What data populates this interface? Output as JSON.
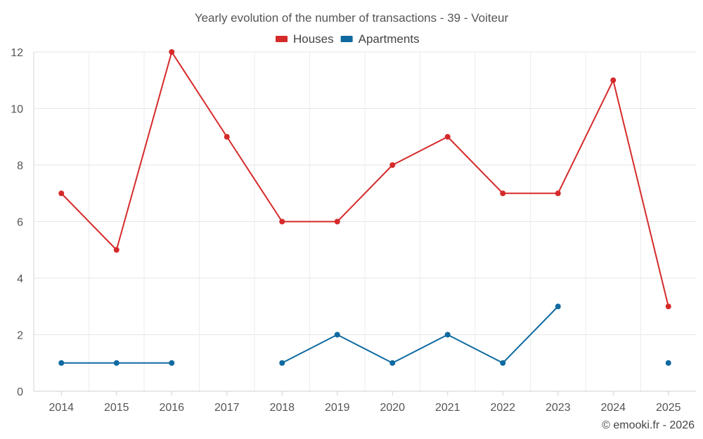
{
  "chart_data": {
    "type": "line",
    "title": "Yearly evolution of the number of transactions - 39 - Voiteur",
    "categories": [
      "2014",
      "2015",
      "2016",
      "2017",
      "2018",
      "2019",
      "2020",
      "2021",
      "2022",
      "2023",
      "2024",
      "2025"
    ],
    "series": [
      {
        "name": "Houses",
        "color": "#d62a2a",
        "values": [
          7,
          5,
          12,
          9,
          6,
          6,
          8,
          9,
          7,
          7,
          11,
          3
        ]
      },
      {
        "name": "Apartments",
        "color": "#0f6aa0",
        "values": [
          1,
          1,
          1,
          null,
          1,
          2,
          1,
          2,
          1,
          3,
          null,
          1
        ]
      }
    ],
    "ylim": [
      0,
      12
    ],
    "yticks": [
      0,
      2,
      4,
      6,
      8,
      10,
      12
    ],
    "xlabel": "",
    "ylabel": "",
    "legend_position": "top-center",
    "grid": true
  },
  "footer": {
    "credit": "© emooki.fr - 2026"
  }
}
